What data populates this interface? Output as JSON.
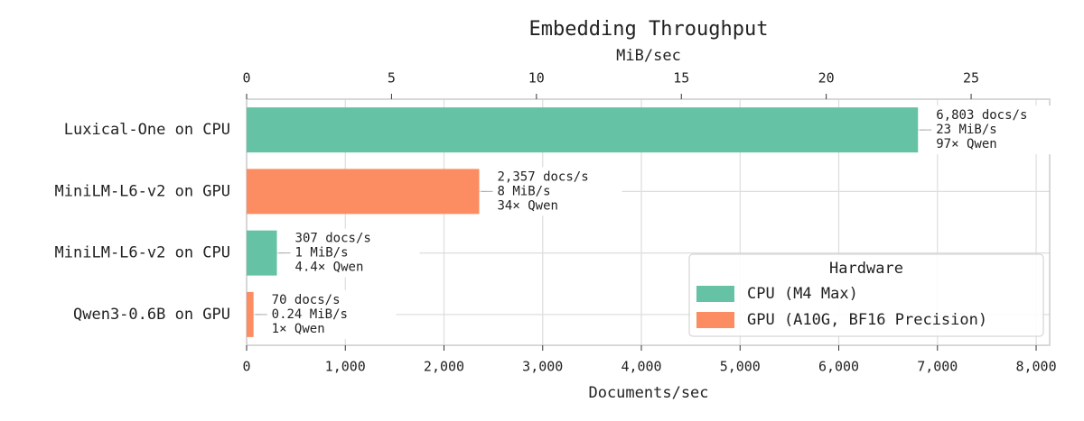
{
  "chart_data": {
    "type": "barh",
    "title": "Embedding Throughput",
    "xlabel": "Documents/sec",
    "x2label": "MiB/sec",
    "categories": [
      "Luxical-One on CPU",
      "MiniLM-L6-v2 on GPU",
      "MiniLM-L6-v2 on CPU",
      "Qwen3-0.6B on GPU"
    ],
    "series": [
      {
        "name": "CPU (M4 Max)",
        "color": "#66c2a5",
        "values": [
          6803,
          null,
          307,
          null
        ],
        "value_labels": [
          "6,803 docs/s",
          null,
          "307 docs/s",
          null
        ],
        "mib_labels": [
          "23 MiB/s",
          null,
          "1 MiB/s",
          null
        ],
        "qwen_labels": [
          "97× Qwen",
          null,
          "4.4× Qwen",
          null
        ]
      },
      {
        "name": "GPU (A10G, BF16 Precision)",
        "color": "#fc8d62",
        "values": [
          null,
          2357,
          null,
          70
        ],
        "value_labels": [
          null,
          "2,357 docs/s",
          null,
          "70 docs/s"
        ],
        "mib_labels": [
          null,
          "8 MiB/s",
          null,
          "0.24 MiB/s"
        ],
        "qwen_labels": [
          null,
          "34× Qwen",
          null,
          "1× Qwen"
        ]
      }
    ],
    "xlim": [
      0,
      8137
    ],
    "xticks": [
      0,
      {
        "value": 1000,
        "label": "1,000"
      },
      {
        "value": 2000,
        "label": "2,000"
      },
      {
        "value": 3000,
        "label": "3,000"
      },
      {
        "value": 4000,
        "label": "4,000"
      },
      {
        "value": 5000,
        "label": "5,000"
      },
      {
        "value": 6000,
        "label": "6,000"
      },
      {
        "value": 7000,
        "label": "7,000"
      },
      {
        "value": 8000,
        "label": "8,000"
      }
    ],
    "x2lim": [
      0,
      27.71
    ],
    "x2ticks": [
      0,
      5,
      10,
      15,
      20,
      25
    ],
    "grid": true,
    "legend_title": "Hardware",
    "legend_position": "lower right"
  }
}
